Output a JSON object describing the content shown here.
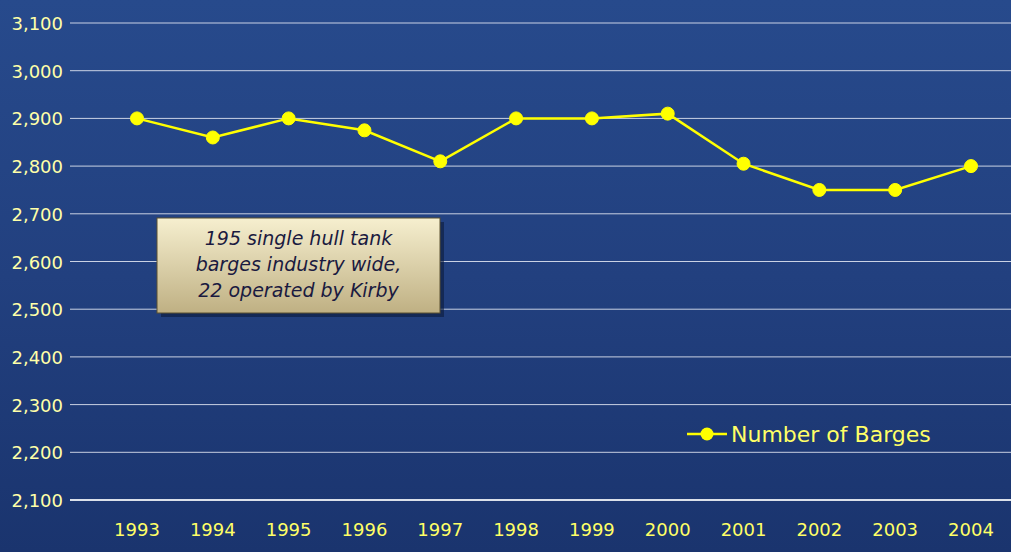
{
  "chart_data": {
    "type": "line",
    "categories": [
      "1993",
      "1994",
      "1995",
      "1996",
      "1997",
      "1998",
      "1999",
      "2000",
      "2001",
      "2002",
      "2003",
      "2004"
    ],
    "series": [
      {
        "name": "Number of Barges",
        "color": "#ffff00",
        "marker": "circle",
        "line_style": "solid",
        "values": [
          2900,
          2860,
          2900,
          2875,
          2810,
          2900,
          2900,
          2910,
          2805,
          2750,
          2750,
          2800
        ]
      }
    ],
    "ylim": [
      2100,
      3100
    ],
    "yticks": [
      {
        "value": 2100,
        "label": "2,100"
      },
      {
        "value": 2200,
        "label": "2,200"
      },
      {
        "value": 2300,
        "label": "2,300"
      },
      {
        "value": 2400,
        "label": "2,400"
      },
      {
        "value": 2500,
        "label": "2,500"
      },
      {
        "value": 2600,
        "label": "2,600"
      },
      {
        "value": 2700,
        "label": "2,700"
      },
      {
        "value": 2800,
        "label": "2,800"
      },
      {
        "value": 2900,
        "label": "2,900"
      },
      {
        "value": 3000,
        "label": "3,000"
      },
      {
        "value": 3100,
        "label": "3,100"
      }
    ],
    "grid": true,
    "legend": "bottom-right",
    "annotation": [
      "195 single hull tank",
      "barges industry wide,",
      "22 operated by Kirby"
    ]
  }
}
